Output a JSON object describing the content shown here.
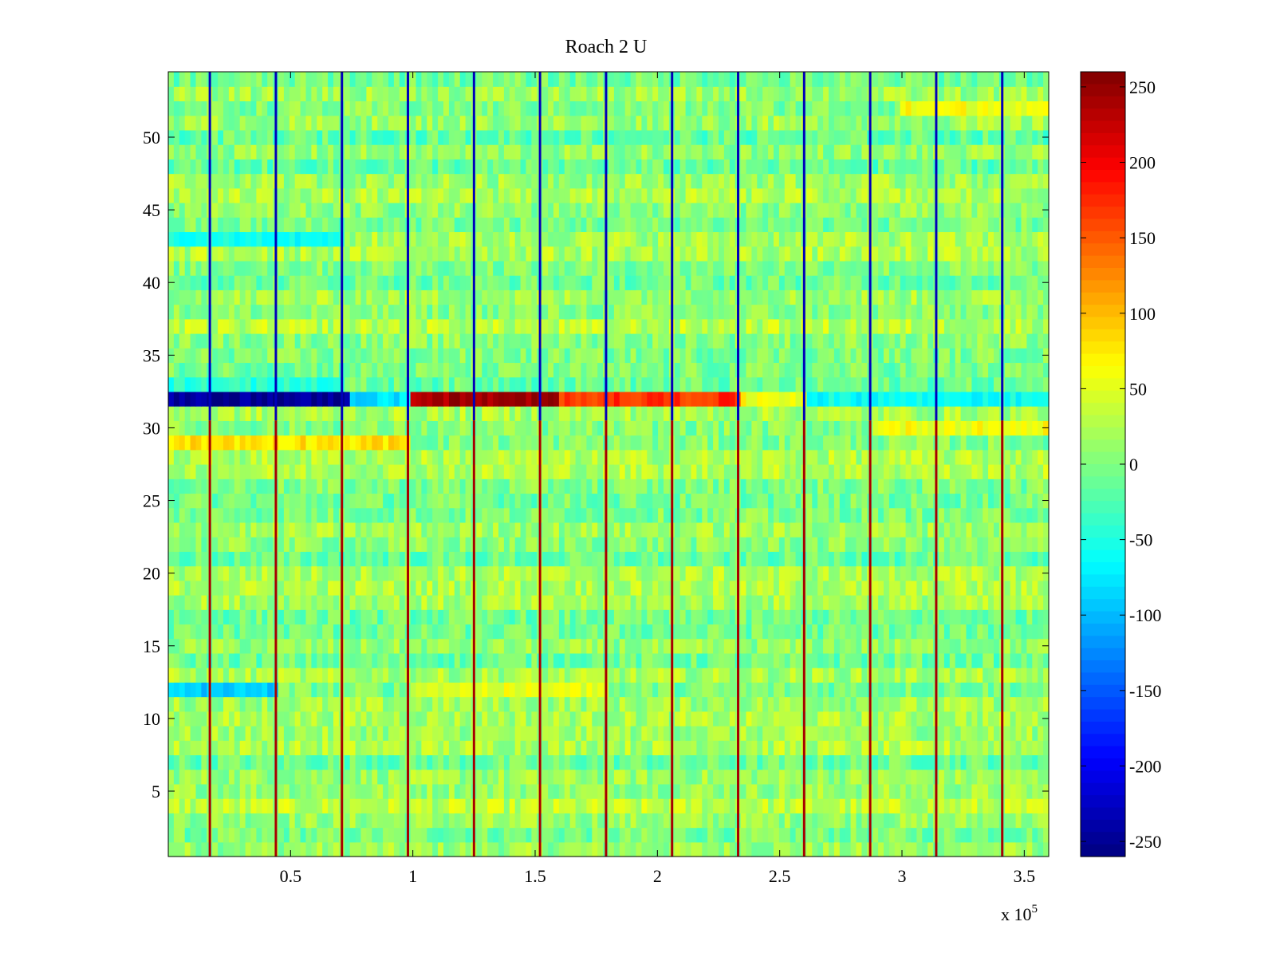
{
  "chart_data": {
    "type": "heatmap",
    "title": "Roach 2 U",
    "xlabel": "",
    "ylabel": "",
    "x_multiplier_label": {
      "base": "x 10",
      "exponent": "5"
    },
    "xlim": [
      0,
      3.6
    ],
    "ylim": [
      0.5,
      54.5
    ],
    "x_ticks": [
      0.5,
      1,
      1.5,
      2,
      2.5,
      3,
      3.5
    ],
    "x_tick_labels": [
      "0.5",
      "1",
      "1.5",
      "2",
      "2.5",
      "3",
      "3.5"
    ],
    "y_ticks": [
      5,
      10,
      15,
      20,
      25,
      30,
      35,
      40,
      45,
      50
    ],
    "y_tick_labels": [
      "5",
      "10",
      "15",
      "20",
      "25",
      "30",
      "35",
      "40",
      "45",
      "50"
    ],
    "rows": 54,
    "colormap": "jet",
    "clim": [
      -260,
      260
    ],
    "colorbar": {
      "ticks": [
        -250,
        -200,
        -150,
        -100,
        -50,
        0,
        50,
        100,
        150,
        200,
        250
      ],
      "tick_labels": [
        "-250",
        "-200",
        "-150",
        "-100",
        "-50",
        "0",
        "50",
        "100",
        "150",
        "200",
        "250"
      ]
    },
    "background_level": 5,
    "periodic_spikes_x": [
      0.17,
      0.44,
      0.71,
      0.98,
      1.25,
      1.52,
      1.79,
      2.06,
      2.33,
      2.6,
      2.87,
      3.14,
      3.41
    ],
    "spike_upper_value": -230,
    "spike_lower_value": 240,
    "spike_split_row": 30,
    "features": [
      {
        "row": 32,
        "x_start": 0.0,
        "x_end": 0.74,
        "value": -250
      },
      {
        "row": 32,
        "x_start": 0.74,
        "x_end": 1.0,
        "value": -80
      },
      {
        "row": 32,
        "x_start": 1.0,
        "x_end": 1.6,
        "value": 240
      },
      {
        "row": 32,
        "x_start": 1.6,
        "x_end": 2.35,
        "value": 170
      },
      {
        "row": 32,
        "x_start": 2.35,
        "x_end": 2.6,
        "value": 60
      },
      {
        "row": 32,
        "x_start": 2.6,
        "x_end": 3.6,
        "value": -60
      },
      {
        "row": 29,
        "x_start": 0.0,
        "x_end": 1.0,
        "value": 80
      },
      {
        "row": 30,
        "x_start": 2.87,
        "x_end": 3.6,
        "value": 60
      },
      {
        "row": 12,
        "x_start": 0.0,
        "x_end": 0.45,
        "value": -90
      },
      {
        "row": 12,
        "x_start": 1.0,
        "x_end": 1.8,
        "value": 50
      },
      {
        "row": 33,
        "x_start": 0.0,
        "x_end": 0.72,
        "value": -45
      },
      {
        "row": 43,
        "x_start": 0.0,
        "x_end": 0.72,
        "value": -55
      },
      {
        "row": 52,
        "x_start": 3.0,
        "x_end": 3.6,
        "value": 60
      }
    ]
  }
}
